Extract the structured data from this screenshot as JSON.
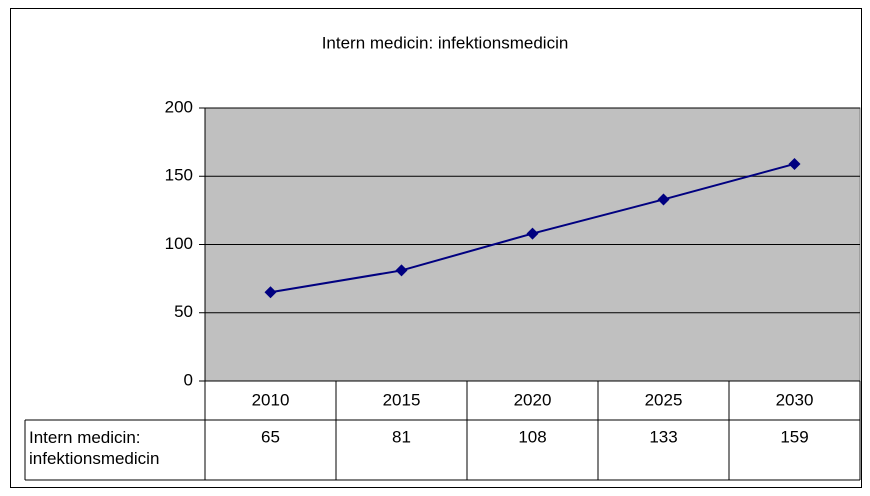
{
  "chart_data": {
    "type": "line",
    "title": "Intern medicin: infektionsmedicin",
    "categories": [
      "2010",
      "2015",
      "2020",
      "2025",
      "2030"
    ],
    "series": [
      {
        "name": "Intern medicin: infektionsmedicin",
        "color": "#000080",
        "values": [
          65,
          81,
          108,
          133,
          159
        ]
      }
    ],
    "ylim": [
      0,
      200
    ],
    "yticks": [
      0,
      50,
      100,
      150,
      200
    ],
    "grid": true,
    "plot_background": "#c0c0c0"
  }
}
